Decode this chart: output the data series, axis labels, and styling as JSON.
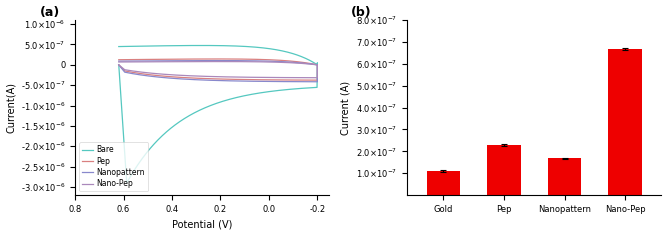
{
  "panel_a_label": "(a)",
  "panel_b_label": "(b)",
  "cv_xlabel": "Potential (V)",
  "cv_ylabel": "Current(A)",
  "cv_xlim": [
    0.8,
    -0.25
  ],
  "cv_ylim": [
    -3.2e-06,
    1.1e-06
  ],
  "cv_yticks": [
    1e-06,
    5e-07,
    0.0,
    -5e-07,
    -1e-06,
    -1.5e-06,
    -2e-06,
    -2.5e-06,
    -3e-06
  ],
  "cv_xticks": [
    0.8,
    0.6,
    0.4,
    0.2,
    0.0,
    -0.2
  ],
  "legend_labels": [
    "Bare",
    "Pep",
    "Nanopattern",
    "Nano-Pep"
  ],
  "line_colors": [
    "#55c8c0",
    "#d98080",
    "#8888cc",
    "#aa88bb"
  ],
  "bar_categories": [
    "Gold",
    "Pep",
    "Nanopattern",
    "Nano-Pep"
  ],
  "bar_values": [
    1.12e-07,
    2.28e-07,
    1.68e-07,
    6.68e-07
  ],
  "bar_errors": [
    4e-09,
    4e-09,
    4e-09,
    4e-09
  ],
  "bar_color": "#ee0000",
  "bar_ylabel": "Current (A)",
  "bar_ylim": [
    0,
    8e-07
  ],
  "bar_yticks": [
    1e-07,
    2e-07,
    3e-07,
    4e-07,
    5e-07,
    6e-07,
    7e-07,
    8e-07
  ]
}
